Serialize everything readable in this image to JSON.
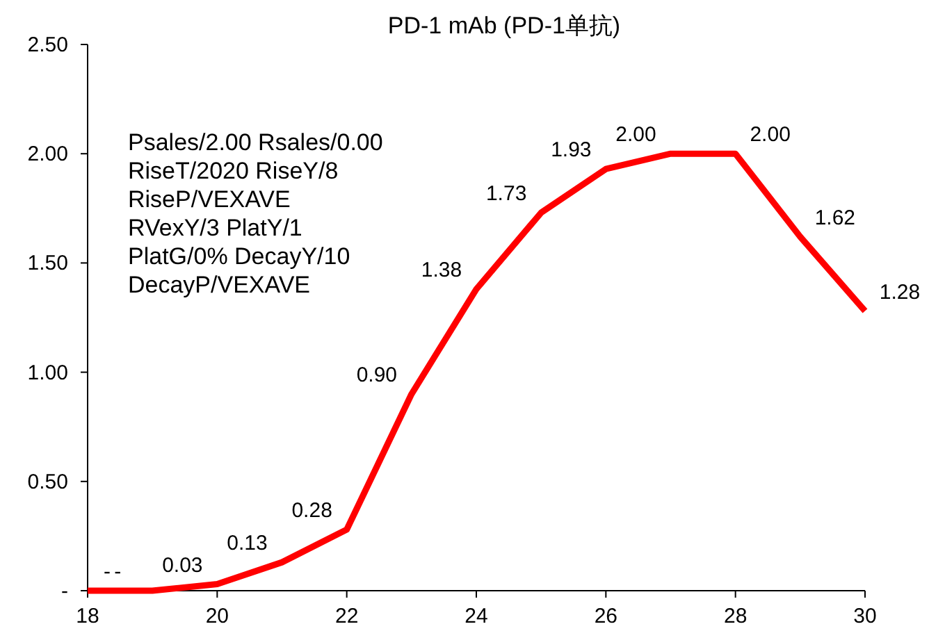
{
  "chart_data": {
    "type": "line",
    "title": "PD-1 mAb (PD-1单抗)",
    "x": [
      18,
      19,
      20,
      21,
      22,
      23,
      24,
      25,
      26,
      27,
      28,
      29,
      30
    ],
    "series": [
      {
        "color": "#ff0000",
        "values": [
          0,
          0,
          0.03,
          0.13,
          0.28,
          0.9,
          1.38,
          1.73,
          1.93,
          2.0,
          2.0,
          1.62,
          1.28
        ],
        "value_labels": [
          "-",
          "-",
          "0.03",
          "0.13",
          "0.28",
          "0.90",
          "1.38",
          "1.73",
          "1.93",
          "2.00",
          "2.00",
          "1.62",
          "1.28"
        ]
      }
    ],
    "xlim": [
      18,
      30
    ],
    "xticks": [
      18,
      20,
      22,
      24,
      26,
      28,
      30
    ],
    "ylim": [
      0,
      2.5
    ],
    "yticks": [
      {
        "value": 0,
        "label": "-"
      },
      {
        "value": 0.5,
        "label": "0.50"
      },
      {
        "value": 1,
        "label": "1.00"
      },
      {
        "value": 1.5,
        "label": "1.50"
      },
      {
        "value": 2,
        "label": "2.00"
      },
      {
        "value": 2.5,
        "label": "2.50"
      }
    ],
    "annotations": [
      "Psales/2.00 Rsales/0.00",
      "RiseT/2020 RiseY/8",
      "RiseP/VEXAVE",
      "RVexY/3 PlatY/1",
      "PlatG/0% DecayY/10",
      "DecayP/VEXAVE"
    ],
    "marker": "none",
    "line_style": "solid",
    "grid": false
  }
}
